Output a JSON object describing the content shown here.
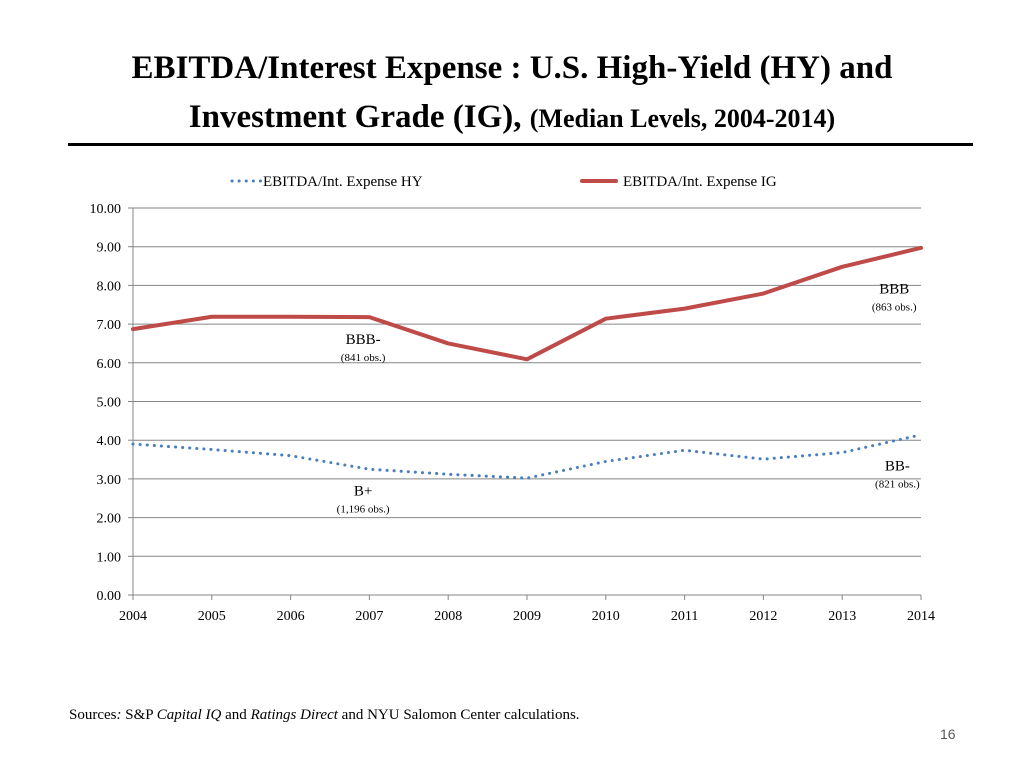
{
  "title": {
    "line1": "EBITDA/Interest Expense : U.S. High-Yield (HY) and",
    "line2_main": "Investment Grade (IG),",
    "line2_sub": "(Median Levels, 2004-2014)"
  },
  "chart_data": {
    "type": "line",
    "x": [
      2004,
      2005,
      2006,
      2007,
      2008,
      2009,
      2010,
      2011,
      2012,
      2013,
      2014
    ],
    "x_tick_labels": [
      "2004",
      "2005",
      "2006",
      "2007",
      "2008",
      "2009",
      "2010",
      "2011",
      "2012",
      "2013",
      "2014"
    ],
    "ylim": [
      0,
      10
    ],
    "y_tick_labels": [
      "0.00",
      "1.00",
      "2.00",
      "3.00",
      "4.00",
      "5.00",
      "6.00",
      "7.00",
      "8.00",
      "9.00",
      "10.00"
    ],
    "grid": true,
    "legend_position": "top",
    "series": [
      {
        "name": "EBITDA/Int. Expense HY",
        "color": "#4a7ebb",
        "style": "dotted",
        "values": [
          3.9,
          3.76,
          3.6,
          3.25,
          3.12,
          3.02,
          3.45,
          3.74,
          3.51,
          3.68,
          4.14
        ]
      },
      {
        "name": "EBITDA/Int. Expense IG",
        "color": "#be4b48",
        "style": "solid",
        "values": [
          6.87,
          7.19,
          7.19,
          7.18,
          6.5,
          6.09,
          7.14,
          7.4,
          7.79,
          8.48,
          8.97
        ]
      }
    ],
    "annotations": [
      {
        "label": "BBB-",
        "note": "(841 obs.)",
        "x": 2006.92,
        "y": 6.49
      },
      {
        "label": "BBB",
        "note": "(863 obs.)",
        "x": 2013.66,
        "y": 7.79
      },
      {
        "label": "B+",
        "note": "(1,196 obs.)",
        "x": 2006.92,
        "y": 2.57
      },
      {
        "label": "BB-",
        "note": "(821 obs.)",
        "x": 2013.7,
        "y": 3.22
      }
    ]
  },
  "footer": {
    "sources_prefix": "Sources",
    "colon": ":",
    "sp": " S&P ",
    "capital_iq": "Capital IQ",
    "and": " and ",
    "ratings_direct": "Ratings Direct",
    "rest": " and NYU Salomon Center calculations.",
    "page_number": "16"
  }
}
